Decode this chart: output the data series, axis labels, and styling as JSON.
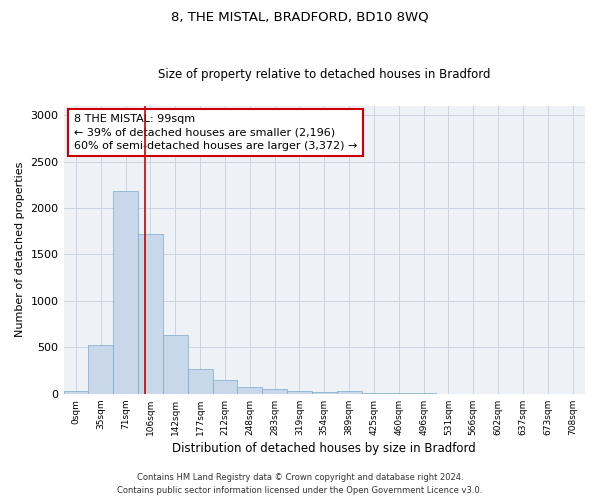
{
  "title": "8, THE MISTAL, BRADFORD, BD10 8WQ",
  "subtitle": "Size of property relative to detached houses in Bradford",
  "xlabel": "Distribution of detached houses by size in Bradford",
  "ylabel": "Number of detached properties",
  "bar_color": "#c8d8ea",
  "bar_edge_color": "#7aaac8",
  "grid_color": "#c8d4e0",
  "annotation_box_color": "#cc0000",
  "vline_color": "#cc0000",
  "categories": [
    "0sqm",
    "35sqm",
    "71sqm",
    "106sqm",
    "142sqm",
    "177sqm",
    "212sqm",
    "248sqm",
    "283sqm",
    "319sqm",
    "354sqm",
    "389sqm",
    "425sqm",
    "460sqm",
    "496sqm",
    "531sqm",
    "566sqm",
    "602sqm",
    "637sqm",
    "673sqm",
    "708sqm"
  ],
  "values": [
    30,
    525,
    2185,
    1720,
    635,
    270,
    150,
    75,
    55,
    35,
    20,
    25,
    5,
    5,
    5,
    0,
    0,
    0,
    0,
    0,
    0
  ],
  "ylim": [
    0,
    3100
  ],
  "yticks": [
    0,
    500,
    1000,
    1500,
    2000,
    2500,
    3000
  ],
  "annotation_text": "8 THE MISTAL: 99sqm\n← 39% of detached houses are smaller (2,196)\n60% of semi-detached houses are larger (3,372) →",
  "footer_line1": "Contains HM Land Registry data © Crown copyright and database right 2024.",
  "footer_line2": "Contains public sector information licensed under the Open Government Licence v3.0.",
  "vline_x": 2.8,
  "background_color": "#eef2f7"
}
